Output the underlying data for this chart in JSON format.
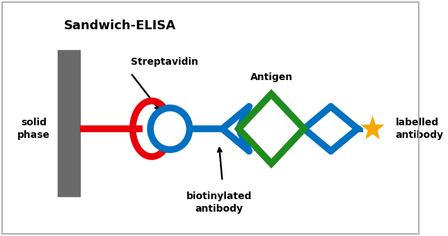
{
  "title": "Sandwich-ELISA",
  "bg_color": "#ffffff",
  "border_color": "#b0b0b0",
  "solid_phase_color": "#6a6a6a",
  "red_color": "#e8000a",
  "blue_color": "#0070c0",
  "green_color": "#1e8c1e",
  "orange_color": "#f5a800",
  "text_color": "#000000",
  "labels": {
    "title": "Sandwich-ELISA",
    "solid_phase": "solid\nphase",
    "streptavidin": "Streptavidin",
    "biotinylated": "biotinylated\nantibody",
    "antigen": "Antigen",
    "labelled": "labelled\nantibody"
  },
  "figsize": [
    6.44,
    3.39
  ],
  "dpi": 100
}
